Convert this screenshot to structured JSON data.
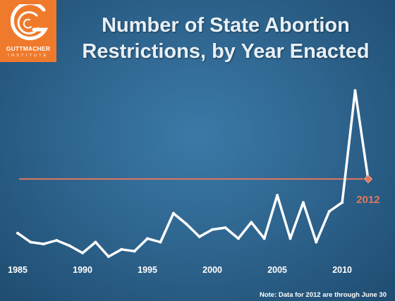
{
  "logo": {
    "name": "GUTTMACHER",
    "sub": "INSTITUTE",
    "icon": "guttmacher-g-logo",
    "color": "#f07a2b"
  },
  "chart_data": {
    "type": "line",
    "title_line1": "Number of State Abortion",
    "title_line2": "Restrictions, by Year Enacted",
    "x": [
      1985,
      1986,
      1987,
      1988,
      1989,
      1990,
      1991,
      1992,
      1993,
      1994,
      1995,
      1996,
      1997,
      1998,
      1999,
      2000,
      2001,
      2002,
      2003,
      2004,
      2005,
      2006,
      2007,
      2008,
      2009,
      2010,
      2011,
      2012
    ],
    "series": [
      {
        "values": [
          13,
          8,
          7,
          9,
          6,
          2,
          8,
          0,
          4,
          3,
          10,
          8,
          24,
          18,
          11,
          15,
          16,
          10,
          19,
          10,
          34,
          10,
          30,
          8,
          25,
          30,
          92,
          43
        ],
        "color": "#ffffff"
      }
    ],
    "ylim": [
      0,
      100
    ],
    "xlim": [
      1984.4,
      2013.2
    ],
    "xticks": [
      1985,
      1990,
      1995,
      2000,
      2005,
      2010
    ],
    "reference_line": {
      "value": 43,
      "color": "#e0785c"
    },
    "highlight": {
      "x": 2012,
      "value": 43,
      "label": "2012",
      "color": "#e0785c"
    },
    "grid": false,
    "note": "Note:  Data for 2012 are through June 30"
  }
}
